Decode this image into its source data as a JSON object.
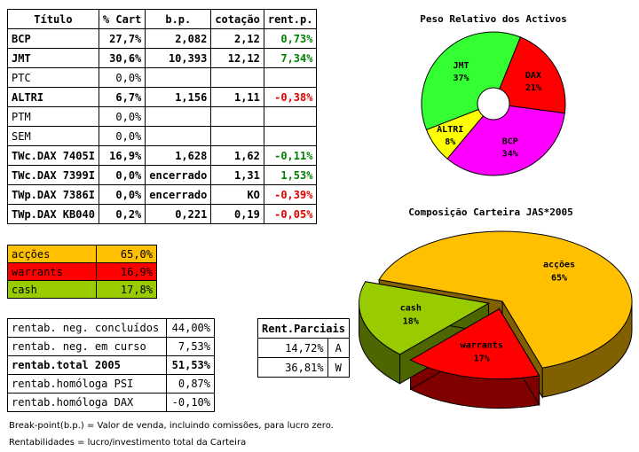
{
  "portfolio_table": {
    "headers": [
      "Título",
      "% Cart",
      "b.p.",
      "cotação",
      "rent.p."
    ],
    "rows": [
      {
        "titulo": "BCP",
        "cart": "27,7%",
        "bp": "2,082",
        "cotacao": "2,12",
        "rent": "0,73%",
        "bold": true,
        "tone": "pos"
      },
      {
        "titulo": "JMT",
        "cart": "30,6%",
        "bp": "10,393",
        "cotacao": "12,12",
        "rent": "7,34%",
        "bold": true,
        "tone": "pos"
      },
      {
        "titulo": "PTC",
        "cart": "0,0%",
        "bp": "",
        "cotacao": "",
        "rent": "",
        "bold": false,
        "tone": ""
      },
      {
        "titulo": "ALTRI",
        "cart": "6,7%",
        "bp": "1,156",
        "cotacao": "1,11",
        "rent": "-0,38%",
        "bold": true,
        "tone": "neg"
      },
      {
        "titulo": "PTM",
        "cart": "0,0%",
        "bp": "",
        "cotacao": "",
        "rent": "",
        "bold": false,
        "tone": ""
      },
      {
        "titulo": "SEM",
        "cart": "0,0%",
        "bp": "",
        "cotacao": "",
        "rent": "",
        "bold": false,
        "tone": ""
      },
      {
        "titulo": "TWc.DAX 7405I",
        "cart": "16,9%",
        "bp": "1,628",
        "cotacao": "1,62",
        "rent": "-0,11%",
        "bold": true,
        "tone": "pos"
      },
      {
        "titulo": "TWc.DAX 7399I",
        "cart": "0,0%",
        "bp": "encerrado",
        "cotacao": "1,31",
        "rent": "1,53%",
        "bold": true,
        "tone": "pos"
      },
      {
        "titulo": "TWp.DAX 7386I",
        "cart": "0,0%",
        "bp": "encerrado",
        "cotacao": "KO",
        "rent": "-0,39%",
        "bold": true,
        "tone": "neg"
      },
      {
        "titulo": "TWp.DAX KB040",
        "cart": "0,2%",
        "bp": "0,221",
        "cotacao": "0,19",
        "rent": "-0,05%",
        "bold": true,
        "tone": "neg"
      }
    ]
  },
  "allocation": [
    {
      "label": "acções",
      "value": "65,0%",
      "color": "#ffc000"
    },
    {
      "label": "warrants",
      "value": "16,9%",
      "color": "#ff0000"
    },
    {
      "label": "cash",
      "value": "17,8%",
      "color": "#99cc00"
    }
  ],
  "summary": [
    {
      "label": "rentab. neg. concluídos",
      "value": "44,00%",
      "bold": false
    },
    {
      "label": "rentab. neg. em curso",
      "value": "7,53%",
      "bold": false
    },
    {
      "label": "rentab.total 2005",
      "value": "51,53%",
      "bold": true
    },
    {
      "label": "rentab.homóloga PSI",
      "value": "0,87%",
      "bold": false
    },
    {
      "label": "rentab.homóloga DAX",
      "value": "-0,10%",
      "bold": false
    }
  ],
  "partials": {
    "title": "Rent.Parciais",
    "rows": [
      {
        "value": "14,72%",
        "code": "A"
      },
      {
        "value": "36,81%",
        "code": "W"
      }
    ]
  },
  "notes": {
    "line1": "Break-point(b.p.) = Valor de venda, incluindo comissões, para lucro zero.",
    "line2": "Rentabilidades = lucro/investimento total da Carteira"
  },
  "chart_data": [
    {
      "type": "pie",
      "title": "Peso Relativo dos Activos",
      "slices": [
        {
          "label": "DAX",
          "value": 21,
          "value_label": "21%",
          "color": "#ff0000"
        },
        {
          "label": "BCP",
          "value": 34,
          "value_label": "34%",
          "color": "#ff00ff"
        },
        {
          "label": "ALTRI",
          "value": 8,
          "value_label": "8%",
          "color": "#ffff00"
        },
        {
          "label": "JMT",
          "value": 37,
          "value_label": "37%",
          "color": "#33ff33"
        }
      ],
      "style": "doughnut"
    },
    {
      "type": "pie",
      "title": "Composição Carteira JAS*2005",
      "slices": [
        {
          "label": "acções",
          "value": 65,
          "value_label": "65%",
          "color": "#ffc000",
          "side": "#806000"
        },
        {
          "label": "warrants",
          "value": 17,
          "value_label": "17%",
          "color": "#ff0000",
          "side": "#800000"
        },
        {
          "label": "cash",
          "value": 18,
          "value_label": "18%",
          "color": "#99cc00",
          "side": "#4d6600"
        }
      ],
      "style": "3d-exploded"
    }
  ]
}
